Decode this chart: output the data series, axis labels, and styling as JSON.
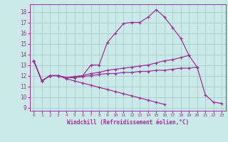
{
  "xlabel": "Windchill (Refroidissement éolien,°C)",
  "bg_color": "#cce9e9",
  "line_color": "#993399",
  "grid_color": "#aacccc",
  "xlim": [
    -0.5,
    23.5
  ],
  "ylim": [
    8.7,
    18.7
  ],
  "yticks": [
    9,
    10,
    11,
    12,
    13,
    14,
    15,
    16,
    17,
    18
  ],
  "xticks": [
    0,
    1,
    2,
    3,
    4,
    5,
    6,
    7,
    8,
    9,
    10,
    11,
    12,
    13,
    14,
    15,
    16,
    17,
    18,
    19,
    20,
    21,
    22,
    23
  ],
  "line1_x": [
    0,
    1,
    2,
    3,
    4,
    5,
    6,
    7,
    8,
    9,
    10,
    11,
    12,
    13,
    14,
    15,
    16,
    17,
    18,
    19,
    20,
    21,
    22,
    23
  ],
  "line1_y": [
    13.4,
    11.5,
    12.0,
    12.0,
    11.8,
    11.9,
    12.0,
    13.0,
    13.0,
    15.1,
    16.0,
    16.9,
    17.0,
    17.0,
    17.5,
    18.2,
    17.5,
    16.5,
    15.5,
    13.9,
    12.8,
    10.2,
    9.5,
    9.4
  ],
  "line2_x": [
    0,
    1,
    2,
    3,
    4,
    5,
    6,
    7,
    8,
    9,
    10,
    11,
    12,
    13,
    14,
    15,
    16,
    17,
    18,
    19
  ],
  "line2_y": [
    13.4,
    11.5,
    12.0,
    12.0,
    11.8,
    11.9,
    12.0,
    12.2,
    12.3,
    12.5,
    12.6,
    12.7,
    12.8,
    12.9,
    13.0,
    13.2,
    13.4,
    13.5,
    13.7,
    13.9
  ],
  "line3_x": [
    0,
    1,
    2,
    3,
    4,
    5,
    6,
    7,
    8,
    9,
    10,
    11,
    12,
    13,
    14,
    15,
    16,
    17,
    18,
    19,
    20
  ],
  "line3_y": [
    13.4,
    11.5,
    12.0,
    12.0,
    11.8,
    11.8,
    11.9,
    12.0,
    12.1,
    12.2,
    12.2,
    12.3,
    12.3,
    12.4,
    12.4,
    12.5,
    12.5,
    12.6,
    12.7,
    12.7,
    12.8
  ],
  "line4_x": [
    0,
    1,
    2,
    3,
    4,
    5,
    6,
    7,
    8,
    9,
    10,
    11,
    12,
    13,
    14,
    15,
    16,
    17,
    18,
    19,
    20,
    21,
    22,
    23
  ],
  "line4_y": [
    13.4,
    11.5,
    12.0,
    12.0,
    11.7,
    11.5,
    11.3,
    11.1,
    10.9,
    10.7,
    10.5,
    10.3,
    10.1,
    9.9,
    9.7,
    9.5,
    9.3,
    null,
    null,
    null,
    null,
    null,
    null,
    null
  ]
}
